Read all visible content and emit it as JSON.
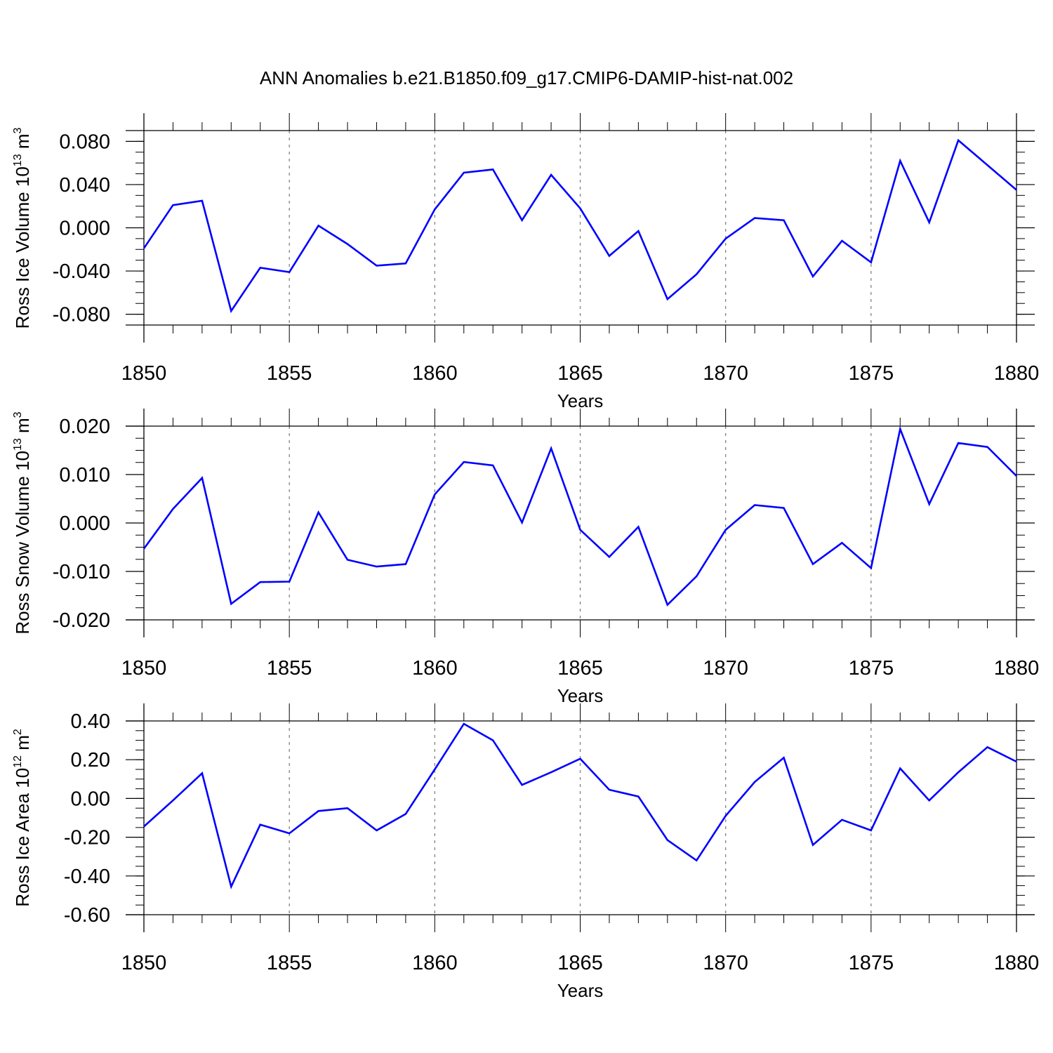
{
  "title": "ANN Anomalies b.e21.B1850.f09_g17.CMIP6-DAMIP-hist-nat.002",
  "chart_data": [
    {
      "type": "line",
      "series_color": "#0000ff",
      "title": "",
      "xlabel": "Years",
      "ylabel_main": "Ross Ice Volume 10",
      "ylabel_exp": "13",
      "ylabel_unit": " m",
      "ylabel_unit_exp": "3",
      "xlim": [
        1850,
        1880
      ],
      "ylim": [
        -0.09,
        0.09
      ],
      "xticks": [
        "1850",
        "1855",
        "1860",
        "1865",
        "1870",
        "1875",
        "1880"
      ],
      "yticks": [
        {
          "value": 0.08,
          "label": "0.080"
        },
        {
          "value": 0.04,
          "label": "0.040"
        },
        {
          "value": 0.0,
          "label": "0.000"
        },
        {
          "value": -0.04,
          "label": "-0.040"
        },
        {
          "value": -0.08,
          "label": "-0.080"
        }
      ],
      "x": [
        1850,
        1851,
        1852,
        1853,
        1854,
        1855,
        1856,
        1857,
        1858,
        1859,
        1860,
        1861,
        1862,
        1863,
        1864,
        1865,
        1866,
        1867,
        1868,
        1869,
        1870,
        1871,
        1872,
        1873,
        1874,
        1875,
        1876,
        1877,
        1878,
        1879,
        1880
      ],
      "values": [
        -0.019,
        0.021,
        0.025,
        -0.077,
        -0.037,
        -0.041,
        0.002,
        -0.015,
        -0.035,
        -0.033,
        0.017,
        0.051,
        0.054,
        0.007,
        0.049,
        0.018,
        -0.026,
        -0.003,
        -0.066,
        -0.043,
        -0.01,
        0.009,
        0.007,
        -0.045,
        -0.012,
        -0.032,
        0.062,
        0.005,
        0.081,
        0.058,
        0.035
      ]
    },
    {
      "type": "line",
      "series_color": "#0000ff",
      "title": "",
      "xlabel": "Years",
      "ylabel_main": "Ross Snow Volume 10",
      "ylabel_exp": "13",
      "ylabel_unit": " m",
      "ylabel_unit_exp": "3",
      "xlim": [
        1850,
        1880
      ],
      "ylim": [
        -0.02,
        0.02
      ],
      "xticks": [
        "1850",
        "1855",
        "1860",
        "1865",
        "1870",
        "1875",
        "1880"
      ],
      "yticks": [
        {
          "value": 0.02,
          "label": "0.020"
        },
        {
          "value": 0.01,
          "label": "0.010"
        },
        {
          "value": 0.0,
          "label": "0.000"
        },
        {
          "value": -0.01,
          "label": "-0.010"
        },
        {
          "value": -0.02,
          "label": "-0.020"
        }
      ],
      "x": [
        1850,
        1851,
        1852,
        1853,
        1854,
        1855,
        1856,
        1857,
        1858,
        1859,
        1860,
        1861,
        1862,
        1863,
        1864,
        1865,
        1866,
        1867,
        1868,
        1869,
        1870,
        1871,
        1872,
        1873,
        1874,
        1875,
        1876,
        1877,
        1878,
        1879,
        1880
      ],
      "values": [
        -0.0053,
        0.0029,
        0.0093,
        -0.0167,
        -0.0122,
        -0.0121,
        0.0022,
        -0.0076,
        -0.009,
        -0.0085,
        0.0059,
        0.0126,
        0.0119,
        0.0001,
        0.0154,
        -0.0014,
        -0.007,
        -0.0008,
        -0.0169,
        -0.011,
        -0.0014,
        0.0037,
        0.0031,
        -0.0085,
        -0.0041,
        -0.0093,
        0.0194,
        0.0039,
        0.0165,
        0.0157,
        0.0097
      ]
    },
    {
      "type": "line",
      "series_color": "#0000ff",
      "title": "",
      "xlabel": "Years",
      "ylabel_main": "Ross Ice Area 10",
      "ylabel_exp": "12",
      "ylabel_unit": " m",
      "ylabel_unit_exp": "2",
      "xlim": [
        1850,
        1880
      ],
      "ylim": [
        -0.6,
        0.4
      ],
      "xticks": [
        "1850",
        "1855",
        "1860",
        "1865",
        "1870",
        "1875",
        "1880"
      ],
      "yticks": [
        {
          "value": 0.4,
          "label": "0.40"
        },
        {
          "value": 0.2,
          "label": "0.20"
        },
        {
          "value": 0.0,
          "label": "0.00"
        },
        {
          "value": -0.2,
          "label": "-0.20"
        },
        {
          "value": -0.4,
          "label": "-0.40"
        },
        {
          "value": -0.6,
          "label": "-0.60"
        }
      ],
      "x": [
        1850,
        1851,
        1852,
        1853,
        1854,
        1855,
        1856,
        1857,
        1858,
        1859,
        1860,
        1861,
        1862,
        1863,
        1864,
        1865,
        1866,
        1867,
        1868,
        1869,
        1870,
        1871,
        1872,
        1873,
        1874,
        1875,
        1876,
        1877,
        1878,
        1879,
        1880
      ],
      "values": [
        -0.145,
        -0.01,
        0.13,
        -0.455,
        -0.135,
        -0.18,
        -0.065,
        -0.05,
        -0.165,
        -0.08,
        0.15,
        0.385,
        0.3,
        0.07,
        0.135,
        0.205,
        0.045,
        0.01,
        -0.215,
        -0.32,
        -0.09,
        0.085,
        0.21,
        -0.24,
        -0.11,
        -0.165,
        0.155,
        -0.01,
        0.135,
        0.265,
        0.19
      ]
    }
  ]
}
